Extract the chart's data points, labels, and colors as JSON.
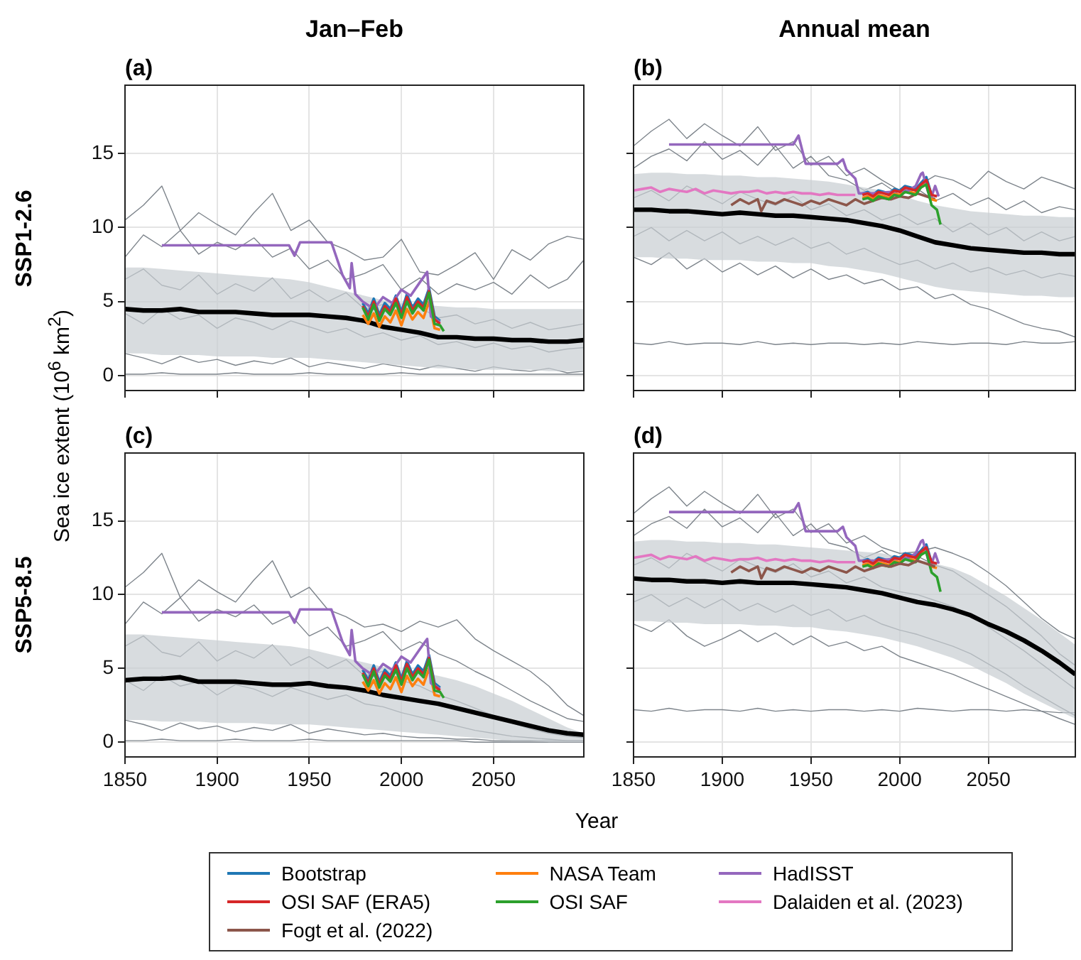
{
  "chart_data": [
    {
      "type": "line",
      "title": "Jan–Feb",
      "subtitle": "(a)",
      "ylabel": "Sea ice extent (10$^{6}$ km$^{2}$)",
      "annotations": [
        "SSP1-2.6"
      ],
      "xlim": [
        1850,
        2099
      ],
      "ylim": [
        -1,
        19.6
      ],
      "xticks": [
        1850,
        1900,
        1950,
        2000,
        2050
      ],
      "yticks": [
        0,
        5,
        10,
        15
      ],
      "grid": true,
      "tick_labels": "y",
      "x": [
        1850,
        1860,
        1870,
        1880,
        1890,
        1900,
        1910,
        1920,
        1930,
        1940,
        1950,
        1960,
        1970,
        1980,
        1990,
        2000,
        2010,
        2020,
        2030,
        2040,
        2050,
        2060,
        2070,
        2080,
        2090,
        2099
      ],
      "series": [
        {
          "color": "#7d848b",
          "values": [
            10.5,
            11.5,
            12.8,
            9.8,
            11,
            10.2,
            9.5,
            11,
            12.3,
            9.8,
            10.5,
            9,
            8.5,
            7.8,
            8,
            9.2,
            7,
            6.8,
            7.5,
            8.3,
            6.5,
            8.5,
            7.8,
            8.9,
            9.4,
            9.2
          ]
        },
        {
          "color": "#7d848b",
          "values": [
            8,
            9.5,
            8.7,
            9.8,
            8.2,
            9,
            8.5,
            9.3,
            8,
            8.6,
            7.2,
            7.8,
            6.5,
            6.9,
            7.5,
            5.8,
            6.6,
            5.5,
            6.2,
            5.8,
            6.3,
            5.5,
            6.8,
            5.9,
            6.5,
            7.8
          ]
        },
        {
          "color": "#7d848b",
          "values": [
            6.5,
            7.2,
            6.1,
            5.8,
            6.8,
            5.5,
            6.2,
            5.7,
            6.6,
            5.2,
            5.8,
            5,
            5.6,
            4.5,
            4.8,
            4.2,
            4.6,
            3.9,
            4.1,
            3.5,
            3.8,
            3.2,
            3.6,
            3.1,
            3.3,
            3.5
          ]
        },
        {
          "color": "#7d848b",
          "values": [
            4.2,
            3.5,
            4.5,
            3.8,
            4.1,
            3.2,
            3.9,
            3.6,
            3.1,
            3.7,
            3.3,
            2.9,
            3.2,
            2.6,
            2.9,
            2.4,
            2.7,
            2.1,
            2.3,
            1.9,
            2.2,
            1.8,
            2,
            1.6,
            1.8,
            1.9
          ]
        },
        {
          "color": "#7d848b",
          "values": [
            1.5,
            1.2,
            0.8,
            1.3,
            0.9,
            1.1,
            0.7,
            1,
            0.8,
            1.2,
            0.6,
            0.9,
            0.7,
            0.5,
            0.8,
            0.6,
            0.4,
            0.7,
            0.5,
            0.3,
            0.6,
            0.4,
            0.3,
            0.5,
            0.2,
            0.3
          ]
        },
        {
          "color": "#7d848b",
          "values": [
            0.1,
            0.1,
            0.2,
            0.1,
            0.1,
            0.1,
            0.2,
            0.1,
            0.1,
            0.1,
            0.2,
            0.1,
            0.1,
            0.1,
            0.1,
            0.2,
            0.1,
            0.1,
            0.1,
            0.1,
            0.1,
            0.1,
            0.1,
            0.1,
            0.1,
            0.1
          ]
        },
        {
          "color": "#000000",
          "values": [
            4.5,
            4.4,
            4.4,
            4.5,
            4.3,
            4.3,
            4.3,
            4.2,
            4.1,
            4.1,
            4.1,
            4.0,
            3.9,
            3.7,
            3.3,
            3.1,
            2.9,
            2.6,
            2.6,
            2.5,
            2.5,
            2.4,
            2.4,
            2.3,
            2.3,
            2.4
          ],
          "lower": [
            1.5,
            1.5,
            1.4,
            1.4,
            1.4,
            1.3,
            1.3,
            1.3,
            1.2,
            1.2,
            1.2,
            1.1,
            1,
            0.9,
            0.8,
            0.7,
            0.6,
            0.5,
            0.5,
            0.4,
            0.4,
            0.4,
            0.4,
            0.3,
            0.3,
            0.3
          ],
          "upper": [
            7.3,
            7.3,
            7.2,
            7.1,
            7,
            6.9,
            6.8,
            6.7,
            6.6,
            6.5,
            6.3,
            6,
            5.7,
            5.4,
            5.1,
            4.9,
            4.8,
            4.7,
            4.6,
            4.6,
            4.5,
            4.5,
            4.5,
            4.5,
            4.5,
            4.5
          ]
        },
        {
          "color": "#1f77b4",
          "x": [
            1979,
            1982,
            1985,
            1988,
            1991,
            1994,
            1997,
            2000,
            2003,
            2006,
            2009,
            2012,
            2015,
            2018,
            2021
          ],
          "values": [
            4.9,
            4.2,
            5.2,
            4.1,
            4.9,
            4.5,
            5.4,
            4.3,
            5.5,
            4.6,
            5.2,
            4.8,
            5.9,
            4.0,
            3.7
          ]
        },
        {
          "color": "#ff7f0e",
          "x": [
            1979,
            1982,
            1985,
            1988,
            1991,
            1994,
            1997,
            2000,
            2003,
            2006,
            2009,
            2012,
            2015,
            2018,
            2021
          ],
          "values": [
            4.1,
            3.5,
            4.2,
            3.3,
            4.0,
            3.6,
            4.4,
            3.4,
            4.5,
            3.8,
            4.3,
            3.9,
            5.0,
            3.2,
            3.1
          ]
        },
        {
          "color": "#9467bd",
          "x": [
            1870,
            1939,
            1942,
            1945,
            1962,
            1968,
            1972,
            1973,
            1975,
            1979,
            1985,
            1990,
            1995,
            2000,
            2005,
            2010,
            2014,
            2016,
            2021
          ],
          "values": [
            8.8,
            8.8,
            8.1,
            9.0,
            9.0,
            6.8,
            5.9,
            7.6,
            5.5,
            5.0,
            4.5,
            5.3,
            4.9,
            5.8,
            5.4,
            6.3,
            7.0,
            4.0,
            3.6
          ]
        },
        {
          "color": "#d62728",
          "x": [
            1979,
            1982,
            1985,
            1988,
            1991,
            1994,
            1997,
            2000,
            2003,
            2006,
            2009,
            2012,
            2015,
            2018,
            2021
          ],
          "values": [
            4.7,
            4.0,
            5.0,
            3.9,
            4.7,
            4.3,
            5.2,
            4.1,
            5.3,
            4.4,
            5.0,
            4.6,
            5.7,
            3.8,
            3.5
          ]
        },
        {
          "color": "#2ca02c",
          "x": [
            1979,
            1982,
            1985,
            1988,
            1991,
            1994,
            1997,
            2000,
            2003,
            2006,
            2009,
            2012,
            2015,
            2018,
            2021,
            2023
          ],
          "values": [
            4.6,
            3.8,
            4.8,
            3.7,
            4.5,
            4.1,
            4.9,
            3.9,
            5,
            4.2,
            4.8,
            4.4,
            5.6,
            3.5,
            3.4,
            3.0
          ]
        }
      ]
    },
    {
      "type": "line",
      "title": "Annual mean",
      "subtitle": "(b)",
      "xlim": [
        1850,
        2099
      ],
      "ylim": [
        -1,
        19.6
      ],
      "xticks": [
        1850,
        1900,
        1950,
        2000,
        2050
      ],
      "yticks": [
        0,
        5,
        10,
        15
      ],
      "grid": true,
      "tick_labels": false,
      "x": [
        1850,
        1860,
        1870,
        1880,
        1890,
        1900,
        1910,
        1920,
        1930,
        1940,
        1950,
        1960,
        1970,
        1980,
        1990,
        2000,
        2010,
        2020,
        2030,
        2040,
        2050,
        2060,
        2070,
        2080,
        2090,
        2099
      ],
      "series": [
        {
          "color": "#7d848b",
          "values": [
            15.5,
            16.5,
            17.3,
            16,
            17,
            16.2,
            15.5,
            16.8,
            15.2,
            15.8,
            14.2,
            14.8,
            13.5,
            14,
            13.2,
            12.5,
            12.8,
            13.5,
            13.2,
            12.6,
            13.8,
            13.1,
            12.6,
            13.4,
            13.0,
            12.6
          ]
        },
        {
          "color": "#7d848b",
          "values": [
            14,
            14.8,
            15.3,
            14.5,
            15.8,
            14.6,
            15.2,
            14.2,
            15.5,
            14,
            14.8,
            13.5,
            13.2,
            12.5,
            13,
            12.2,
            12.6,
            11.8,
            12.3,
            11.5,
            12,
            11.2,
            11.8,
            11,
            11.4,
            11.2
          ]
        },
        {
          "color": "#7d848b",
          "values": [
            12,
            12.5,
            11.8,
            12.8,
            12.2,
            11.6,
            12.4,
            11.9,
            11.5,
            12.1,
            11.2,
            11.6,
            10.8,
            11.2,
            10.5,
            10.9,
            10.2,
            10.6,
            9.7,
            10.3,
            9.5,
            10,
            9.1,
            9.7,
            9.1,
            9.4
          ]
        },
        {
          "color": "#7d848b",
          "values": [
            9.4,
            10,
            9.1,
            9.8,
            9.1,
            9.7,
            8.9,
            9.4,
            8.8,
            9.3,
            8.6,
            9,
            8.2,
            8.6,
            8,
            7.5,
            7.8,
            7.2,
            7.6,
            7,
            7.3,
            6.8,
            7.1,
            6.6,
            6.9,
            6.7
          ]
        },
        {
          "color": "#7d848b",
          "values": [
            8,
            7.5,
            8.3,
            7.2,
            7.9,
            7,
            7.6,
            6.8,
            7.4,
            6.6,
            7.2,
            6.5,
            6.8,
            6.2,
            6.5,
            5.8,
            6,
            5.2,
            5.5,
            4.8,
            4.5,
            4,
            3.5,
            3.2,
            3,
            2.6
          ]
        },
        {
          "color": "#7d848b",
          "values": [
            2.2,
            2.1,
            2.3,
            2.1,
            2.2,
            2.2,
            2.1,
            2.3,
            2.1,
            2.2,
            2.1,
            2.2,
            2.2,
            2.1,
            2.2,
            2.1,
            2.3,
            2.2,
            2.1,
            2.2,
            2.2,
            2.1,
            2.3,
            2.2,
            2.2,
            2.3
          ]
        },
        {
          "color": "#000000",
          "values": [
            11.2,
            11.2,
            11.1,
            11.1,
            11,
            10.9,
            11,
            10.9,
            10.8,
            10.8,
            10.7,
            10.6,
            10.5,
            10.3,
            10.1,
            9.8,
            9.4,
            9,
            8.8,
            8.6,
            8.5,
            8.4,
            8.3,
            8.3,
            8.2,
            8.2
          ],
          "lower": [
            8,
            8,
            7.9,
            7.9,
            7.8,
            7.8,
            7.8,
            7.7,
            7.7,
            7.6,
            7.6,
            7.4,
            7.3,
            7.1,
            6.9,
            6.6,
            6.3,
            6,
            5.8,
            5.7,
            5.6,
            5.5,
            5.4,
            5.4,
            5.3,
            5.3
          ],
          "upper": [
            13.6,
            13.7,
            13.7,
            13.6,
            13.6,
            13.5,
            13.5,
            13.4,
            13.4,
            13.3,
            13.2,
            13.1,
            12.9,
            12.7,
            12.5,
            12.2,
            11.8,
            11.5,
            11.3,
            11.1,
            11,
            10.9,
            10.8,
            10.8,
            10.7,
            10.7
          ]
        },
        {
          "color": "#e377c2",
          "x": [
            1850,
            1855,
            1860,
            1865,
            1870,
            1875,
            1880,
            1885,
            1890,
            1895,
            1900,
            1905,
            1910,
            1915,
            1920,
            1925,
            1930,
            1935,
            1940,
            1945,
            1950,
            1955,
            1960,
            1965,
            1970,
            1975
          ],
          "values": [
            12.5,
            12.6,
            12.7,
            12.4,
            12.6,
            12.5,
            12.4,
            12.6,
            12.3,
            12.5,
            12.4,
            12.3,
            12.4,
            12.4,
            12.5,
            12.3,
            12.4,
            12.3,
            12.4,
            12.3,
            12.3,
            12.2,
            12.3,
            12.2,
            12.2,
            12.2
          ]
        },
        {
          "color": "#8c564b",
          "x": [
            1905,
            1910,
            1915,
            1920,
            1922,
            1925,
            1930,
            1935,
            1940,
            1945,
            1950,
            1955,
            1960,
            1965,
            1970,
            1975,
            1980,
            1985,
            1990,
            1995,
            2000,
            2005,
            2010,
            2015,
            2020
          ],
          "values": [
            11.5,
            11.9,
            11.6,
            11.9,
            11.1,
            11.8,
            11.6,
            11.9,
            11.7,
            11.5,
            11.8,
            11.6,
            11.9,
            11.7,
            11.5,
            11.9,
            11.6,
            11.8,
            12.0,
            11.9,
            12.1,
            12.0,
            12.3,
            12.1,
            11.9
          ]
        },
        {
          "color": "#1f77b4",
          "x": [
            1979,
            1982,
            1985,
            1988,
            1991,
            1994,
            1997,
            2000,
            2003,
            2006,
            2009,
            2012,
            2015,
            2018,
            2021
          ],
          "values": [
            12.3,
            12.4,
            12.2,
            12.5,
            12.4,
            12.3,
            12.6,
            12.5,
            12.8,
            12.7,
            12.6,
            13.0,
            13.4,
            12.2,
            12.1
          ]
        },
        {
          "color": "#ff7f0e",
          "x": [
            1979,
            1982,
            1985,
            1988,
            1991,
            1994,
            1997,
            2000,
            2003,
            2006,
            2009,
            2012,
            2015,
            2018,
            2021
          ],
          "values": [
            12.0,
            12.1,
            11.9,
            12.2,
            12.1,
            12.0,
            12.3,
            12.2,
            12.5,
            12.4,
            12.3,
            12.7,
            13.0,
            11.9,
            11.8
          ]
        },
        {
          "color": "#9467bd",
          "x": [
            1870,
            1940,
            1943,
            1947,
            1965,
            1968,
            1970,
            1975,
            1977,
            1985,
            1995,
            2005,
            2009,
            2012,
            2013,
            2016,
            2018,
            2020,
            2022
          ],
          "values": [
            15.6,
            15.6,
            16.2,
            14.3,
            14.3,
            14.6,
            13.9,
            13.3,
            12.3,
            12.3,
            12.4,
            12.5,
            12.8,
            13.6,
            13.7,
            12.4,
            12.1,
            12.8,
            12.1
          ]
        },
        {
          "color": "#d62728",
          "x": [
            1979,
            1982,
            1985,
            1988,
            1991,
            1994,
            1997,
            2000,
            2003,
            2006,
            2009,
            2012,
            2015,
            2018,
            2021
          ],
          "values": [
            12.2,
            12.3,
            12.1,
            12.4,
            12.3,
            12.2,
            12.5,
            12.4,
            12.7,
            12.6,
            12.5,
            12.9,
            13.2,
            12.2,
            12.1
          ]
        },
        {
          "color": "#2ca02c",
          "x": [
            1979,
            1982,
            1985,
            1988,
            1991,
            1994,
            1997,
            2000,
            2003,
            2006,
            2009,
            2012,
            2015,
            2018,
            2021,
            2023
          ],
          "values": [
            11.9,
            12.0,
            11.8,
            12.1,
            12.0,
            11.9,
            12.2,
            12.1,
            12.4,
            12.3,
            12.2,
            12.7,
            12.9,
            11.5,
            11.2,
            10.2
          ]
        }
      ]
    },
    {
      "type": "line",
      "subtitle": "(c)",
      "xlabel": "Year",
      "annotations": [
        "SSP5-8.5"
      ],
      "xlim": [
        1850,
        2099
      ],
      "ylim": [
        -1,
        19.6
      ],
      "xticks": [
        1850,
        1900,
        1950,
        2000,
        2050
      ],
      "yticks": [
        0,
        5,
        10,
        15
      ],
      "grid": true,
      "x": [
        1850,
        1860,
        1870,
        1880,
        1890,
        1900,
        1910,
        1920,
        1930,
        1940,
        1950,
        1960,
        1970,
        1980,
        1990,
        2000,
        2010,
        2020,
        2030,
        2040,
        2050,
        2060,
        2070,
        2080,
        2090,
        2099
      ],
      "series": [
        {
          "color": "#7d848b",
          "values": [
            10.5,
            11.5,
            12.8,
            9.8,
            11,
            10.2,
            9.5,
            11,
            12.3,
            9.8,
            10.5,
            9,
            8.5,
            7.8,
            8,
            7.5,
            8.2,
            7.8,
            8.3,
            7,
            6.2,
            5.5,
            4.8,
            3.8,
            2.5,
            1.8
          ]
        },
        {
          "color": "#7d848b",
          "values": [
            8,
            9.5,
            8.7,
            9.8,
            8.2,
            9,
            8.5,
            9.3,
            8,
            8.6,
            7.2,
            7.8,
            6.5,
            6.9,
            7.5,
            6.2,
            6.8,
            6,
            5.5,
            4.8,
            4.2,
            3.5,
            2.8,
            2.2,
            1.6,
            1.4
          ]
        },
        {
          "color": "#7d848b",
          "values": [
            6.5,
            7.2,
            6.1,
            5.8,
            6.8,
            5.5,
            6.2,
            5.7,
            6.6,
            5.2,
            5.8,
            5,
            5.6,
            4.5,
            4.8,
            4.2,
            3.8,
            3.2,
            2.8,
            2.3,
            1.8,
            1.3,
            0.9,
            0.6,
            0.4,
            0.3
          ]
        },
        {
          "color": "#7d848b",
          "values": [
            4.2,
            3.5,
            4.5,
            3.8,
            4.1,
            3.2,
            3.9,
            3.6,
            3.1,
            3.7,
            3.3,
            2.9,
            3.2,
            2.6,
            2.4,
            2,
            1.7,
            1.4,
            1.1,
            0.8,
            0.6,
            0.4,
            0.3,
            0.2,
            0.1,
            0.1
          ]
        },
        {
          "color": "#7d848b",
          "values": [
            1.5,
            1.2,
            0.8,
            1.3,
            0.9,
            1.1,
            0.7,
            1,
            0.8,
            1.2,
            0.6,
            0.9,
            0.7,
            0.5,
            0.6,
            0.4,
            0.3,
            0.3,
            0.2,
            0.2,
            0.1,
            0.1,
            0.1,
            0.1,
            0.1,
            0.1
          ]
        },
        {
          "color": "#7d848b",
          "values": [
            0.1,
            0.1,
            0.2,
            0.1,
            0.1,
            0.1,
            0.2,
            0.1,
            0.1,
            0.1,
            0.2,
            0.1,
            0.1,
            0.1,
            0.1,
            0.1,
            0.1,
            0.1,
            0.1,
            0,
            0,
            0,
            0,
            0,
            0,
            0
          ]
        },
        {
          "color": "#000000",
          "values": [
            4.2,
            4.3,
            4.3,
            4.4,
            4.1,
            4.1,
            4.1,
            4,
            3.9,
            3.9,
            4,
            3.8,
            3.7,
            3.5,
            3.2,
            3,
            2.8,
            2.6,
            2.3,
            2,
            1.7,
            1.4,
            1.1,
            0.8,
            0.6,
            0.5
          ],
          "lower": [
            1.5,
            1.5,
            1.4,
            1.4,
            1.4,
            1.3,
            1.3,
            1.3,
            1.2,
            1.2,
            1.2,
            1.1,
            1,
            0.9,
            0.8,
            0.7,
            0.6,
            0.5,
            0.4,
            0.3,
            0.2,
            0.1,
            0.1,
            0,
            0,
            0
          ],
          "upper": [
            7.3,
            7.3,
            7.2,
            7.1,
            7,
            6.9,
            6.8,
            6.7,
            6.6,
            6.5,
            6.3,
            6,
            5.7,
            5.4,
            5.1,
            4.9,
            4.7,
            4.5,
            4.2,
            3.8,
            3.3,
            2.8,
            2.2,
            1.6,
            1,
            0.6
          ]
        },
        {
          "color": "#1f77b4",
          "x": [
            1979,
            1982,
            1985,
            1988,
            1991,
            1994,
            1997,
            2000,
            2003,
            2006,
            2009,
            2012,
            2015,
            2018,
            2021
          ],
          "values": [
            4.9,
            4.2,
            5.2,
            4.1,
            4.9,
            4.5,
            5.4,
            4.3,
            5.5,
            4.6,
            5.2,
            4.8,
            5.9,
            4.0,
            3.7
          ]
        },
        {
          "color": "#ff7f0e",
          "x": [
            1979,
            1982,
            1985,
            1988,
            1991,
            1994,
            1997,
            2000,
            2003,
            2006,
            2009,
            2012,
            2015,
            2018,
            2021
          ],
          "values": [
            4.1,
            3.5,
            4.2,
            3.3,
            4.0,
            3.6,
            4.4,
            3.4,
            4.5,
            3.8,
            4.3,
            3.9,
            5.0,
            3.2,
            3.1
          ]
        },
        {
          "color": "#9467bd",
          "x": [
            1870,
            1939,
            1942,
            1945,
            1962,
            1968,
            1972,
            1973,
            1975,
            1979,
            1985,
            1990,
            1995,
            2000,
            2005,
            2010,
            2014,
            2016,
            2021
          ],
          "values": [
            8.8,
            8.8,
            8.1,
            9.0,
            9.0,
            6.8,
            5.9,
            7.6,
            5.5,
            5.0,
            4.5,
            5.3,
            4.9,
            5.8,
            5.4,
            6.3,
            7.0,
            4.0,
            3.6
          ]
        },
        {
          "color": "#d62728",
          "x": [
            1979,
            1982,
            1985,
            1988,
            1991,
            1994,
            1997,
            2000,
            2003,
            2006,
            2009,
            2012,
            2015,
            2018,
            2021
          ],
          "values": [
            4.7,
            4.0,
            5.0,
            3.9,
            4.7,
            4.3,
            5.2,
            4.1,
            5.3,
            4.4,
            5.0,
            4.6,
            5.7,
            3.8,
            3.5
          ]
        },
        {
          "color": "#2ca02c",
          "x": [
            1979,
            1982,
            1985,
            1988,
            1991,
            1994,
            1997,
            2000,
            2003,
            2006,
            2009,
            2012,
            2015,
            2018,
            2021,
            2023
          ],
          "values": [
            4.6,
            3.8,
            4.8,
            3.7,
            4.5,
            4.1,
            4.9,
            3.9,
            5,
            4.2,
            4.8,
            4.4,
            5.6,
            3.5,
            3.4,
            3.0
          ]
        }
      ]
    },
    {
      "type": "line",
      "subtitle": "(d)",
      "legend": "bottom",
      "xlim": [
        1850,
        2099
      ],
      "ylim": [
        -1,
        19.6
      ],
      "xticks": [
        1850,
        1900,
        1950,
        2000,
        2050
      ],
      "yticks": [
        0,
        5,
        10,
        15
      ],
      "grid": true,
      "tick_labels": "x",
      "x": [
        1850,
        1860,
        1870,
        1880,
        1890,
        1900,
        1910,
        1920,
        1930,
        1940,
        1950,
        1960,
        1970,
        1980,
        1990,
        2000,
        2010,
        2020,
        2030,
        2040,
        2050,
        2060,
        2070,
        2080,
        2090,
        2099
      ],
      "series": [
        {
          "color": "#7d848b",
          "values": [
            15.5,
            16.5,
            17.3,
            16,
            17,
            16.2,
            15.5,
            16.8,
            15.2,
            15.8,
            14.2,
            14.8,
            13.5,
            14,
            13.2,
            12.8,
            12.9,
            13.2,
            12.8,
            12.3,
            11.5,
            10.6,
            9.5,
            8.4,
            7.5,
            7
          ]
        },
        {
          "color": "#7d848b",
          "values": [
            14,
            14.8,
            15.3,
            14.5,
            15.8,
            14.6,
            15.2,
            14.2,
            15.5,
            14,
            14.8,
            13.5,
            13.2,
            12.5,
            13,
            12.2,
            12.6,
            12,
            11.6,
            10.8,
            10,
            9.2,
            8.2,
            7.2,
            6,
            5.2
          ]
        },
        {
          "color": "#7d848b",
          "values": [
            12,
            12.5,
            11.8,
            12.8,
            12.2,
            11.6,
            12.4,
            11.9,
            11.5,
            12.1,
            11.2,
            11.6,
            10.8,
            11.2,
            10.5,
            10.2,
            10,
            9.6,
            9.2,
            8.6,
            7.8,
            7,
            6.2,
            5.3,
            4.4,
            3.6
          ]
        },
        {
          "color": "#7d848b",
          "values": [
            9.5,
            10,
            9.2,
            9.8,
            9.1,
            9.7,
            8.9,
            9.4,
            8.8,
            9.3,
            8.6,
            9,
            8.2,
            8.6,
            8,
            7.6,
            7.3,
            6.9,
            6.5,
            6,
            5.3,
            4.6,
            3.8,
            3.1,
            2.4,
            1.8
          ]
        },
        {
          "color": "#7d848b",
          "values": [
            8,
            7.5,
            8.3,
            7.2,
            6.5,
            7,
            7.6,
            6.8,
            7.4,
            6.6,
            7.2,
            6.5,
            6.8,
            6.2,
            6.5,
            5.8,
            5.4,
            5,
            4.6,
            4.1,
            3.6,
            3.1,
            2.6,
            2.1,
            1.6,
            1.2
          ]
        },
        {
          "color": "#7d848b",
          "values": [
            2.2,
            2.1,
            2.3,
            2.1,
            2.2,
            2.2,
            2.1,
            2.3,
            2.1,
            2.2,
            2.1,
            2.2,
            2.2,
            2.1,
            2.2,
            2.1,
            2.3,
            2.2,
            2.1,
            2.2,
            2.2,
            2.1,
            2.2,
            2.1,
            2,
            2
          ]
        },
        {
          "color": "#000000",
          "values": [
            11.1,
            11,
            11,
            10.9,
            10.9,
            10.8,
            10.9,
            10.8,
            10.8,
            10.8,
            10.7,
            10.6,
            10.5,
            10.3,
            10.1,
            9.8,
            9.5,
            9.3,
            9,
            8.6,
            8,
            7.5,
            6.9,
            6.2,
            5.4,
            4.6
          ],
          "lower": [
            8.2,
            8.2,
            8.1,
            8.1,
            8,
            8,
            8,
            7.9,
            7.9,
            7.8,
            7.8,
            7.6,
            7.5,
            7.3,
            7.1,
            6.8,
            6.5,
            6.1,
            5.7,
            5.2,
            4.6,
            4,
            3.3,
            2.7,
            2.1,
            1.6
          ],
          "upper": [
            13.6,
            13.7,
            13.7,
            13.6,
            13.6,
            13.5,
            13.5,
            13.4,
            13.4,
            13.3,
            13.2,
            13.1,
            13,
            12.9,
            12.8,
            12.6,
            12.4,
            12.1,
            11.8,
            11.3,
            10.6,
            9.9,
            9.1,
            8.3,
            7.4,
            6.6
          ]
        },
        {
          "name": "Bootstrap",
          "color": "#1f77b4",
          "x": [
            1979,
            1982,
            1985,
            1988,
            1991,
            1994,
            1997,
            2000,
            2003,
            2006,
            2009,
            2012,
            2015,
            2018,
            2021
          ],
          "values": [
            12.3,
            12.4,
            12.2,
            12.5,
            12.4,
            12.3,
            12.6,
            12.5,
            12.8,
            12.7,
            12.6,
            13.0,
            13.4,
            12.2,
            12.1
          ]
        },
        {
          "name": "NASA Team",
          "color": "#ff7f0e",
          "x": [
            1979,
            1982,
            1985,
            1988,
            1991,
            1994,
            1997,
            2000,
            2003,
            2006,
            2009,
            2012,
            2015,
            2018,
            2021
          ],
          "values": [
            12.0,
            12.1,
            11.9,
            12.2,
            12.1,
            12.0,
            12.3,
            12.2,
            12.5,
            12.4,
            12.3,
            12.7,
            13.0,
            11.9,
            11.8
          ]
        },
        {
          "name": "HadISST",
          "color": "#9467bd",
          "x": [
            1870,
            1940,
            1943,
            1947,
            1965,
            1968,
            1970,
            1975,
            1977,
            1985,
            1995,
            2005,
            2009,
            2012,
            2013,
            2016,
            2018,
            2020,
            2022
          ],
          "values": [
            15.6,
            15.6,
            16.2,
            14.3,
            14.3,
            14.6,
            13.9,
            13.3,
            12.3,
            12.3,
            12.4,
            12.5,
            12.8,
            13.6,
            13.7,
            12.4,
            12.1,
            12.8,
            12.1
          ]
        },
        {
          "name": "OSI SAF (ERA5)",
          "color": "#d62728",
          "x": [
            1979,
            1982,
            1985,
            1988,
            1991,
            1994,
            1997,
            2000,
            2003,
            2006,
            2009,
            2012,
            2015,
            2018,
            2021
          ],
          "values": [
            12.2,
            12.3,
            12.1,
            12.4,
            12.3,
            12.2,
            12.5,
            12.4,
            12.7,
            12.6,
            12.5,
            12.9,
            13.2,
            12.2,
            12.1
          ]
        },
        {
          "name": "OSI SAF",
          "color": "#2ca02c",
          "x": [
            1979,
            1982,
            1985,
            1988,
            1991,
            1994,
            1997,
            2000,
            2003,
            2006,
            2009,
            2012,
            2015,
            2018,
            2021,
            2023
          ],
          "values": [
            11.9,
            12.0,
            11.8,
            12.1,
            12.0,
            11.9,
            12.2,
            12.1,
            12.4,
            12.3,
            12.2,
            12.7,
            12.9,
            11.5,
            11.2,
            10.2
          ]
        },
        {
          "name": "Dalaiden et al. (2023)",
          "color": "#e377c2",
          "x": [
            1850,
            1855,
            1860,
            1865,
            1870,
            1875,
            1880,
            1885,
            1890,
            1895,
            1900,
            1905,
            1910,
            1915,
            1920,
            1925,
            1930,
            1935,
            1940,
            1945,
            1950,
            1955,
            1960,
            1965,
            1970,
            1975
          ],
          "values": [
            12.5,
            12.6,
            12.7,
            12.4,
            12.6,
            12.5,
            12.4,
            12.6,
            12.3,
            12.5,
            12.4,
            12.3,
            12.4,
            12.4,
            12.5,
            12.3,
            12.4,
            12.3,
            12.4,
            12.3,
            12.3,
            12.2,
            12.3,
            12.2,
            12.2,
            12.2
          ]
        },
        {
          "name": "Fogt et al. (2022)",
          "color": "#8c564b",
          "x": [
            1905,
            1910,
            1915,
            1920,
            1922,
            1925,
            1930,
            1935,
            1940,
            1945,
            1950,
            1955,
            1960,
            1965,
            1970,
            1975,
            1980,
            1985,
            1990,
            1995,
            2000,
            2005,
            2010,
            2015,
            2020
          ],
          "values": [
            11.5,
            11.9,
            11.6,
            11.9,
            11.1,
            11.8,
            11.6,
            11.9,
            11.7,
            11.5,
            11.8,
            11.6,
            11.9,
            11.7,
            11.5,
            11.9,
            11.6,
            11.8,
            12.0,
            11.9,
            12.1,
            12.0,
            12.3,
            12.1,
            11.9
          ]
        }
      ]
    }
  ]
}
